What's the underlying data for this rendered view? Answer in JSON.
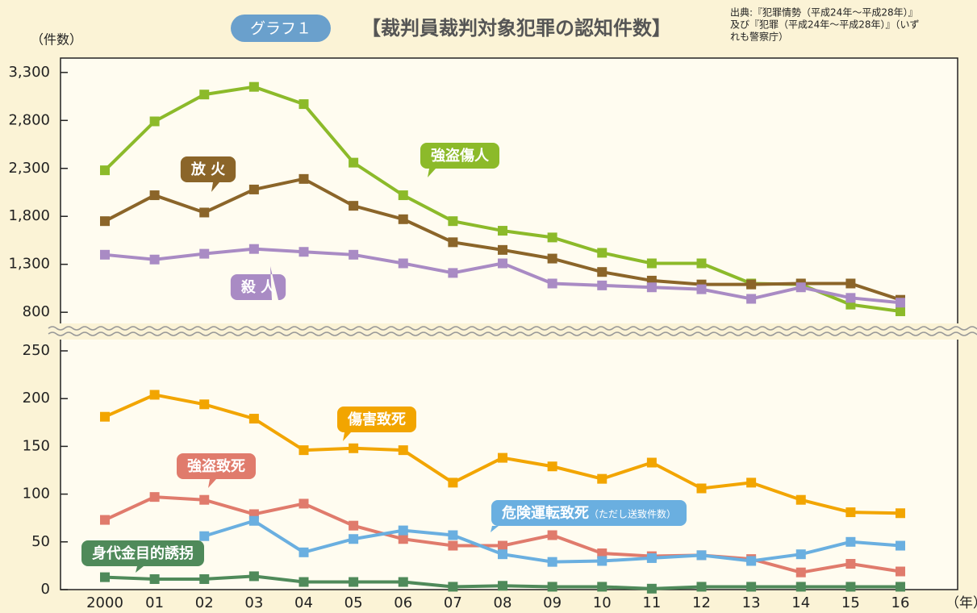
{
  "chart_data": {
    "type": "line",
    "badge": "グラフ１",
    "title": "【裁判員裁判対象犯罪の認知件数】",
    "source": [
      "出典:『犯罪情勢（平成24年～平成28年）』",
      "及び『犯罪（平成24年～平成28年）』（いず",
      "れも警察庁）"
    ],
    "ylabel": "（件数）",
    "xlabel": "（年）",
    "categories": [
      "2000",
      "01",
      "02",
      "03",
      "04",
      "05",
      "06",
      "07",
      "08",
      "09",
      "10",
      "11",
      "12",
      "13",
      "14",
      "15",
      "16"
    ],
    "panels": [
      {
        "ylim": [
          650,
          3450
        ],
        "yticks": [
          {
            "value": 800,
            "label": "800"
          },
          {
            "value": 1300,
            "label": "1,300"
          },
          {
            "value": 1800,
            "label": "1,800"
          },
          {
            "value": 2300,
            "label": "2,300"
          },
          {
            "value": 2800,
            "label": "2,800"
          },
          {
            "value": 3300,
            "label": "3,300"
          }
        ],
        "series": [
          {
            "name": "強盗傷人",
            "color": "#8cba2a",
            "values": [
              2280,
              2790,
              3070,
              3150,
              2970,
              2360,
              2020,
              1750,
              1650,
              1580,
              1420,
              1310,
              1310,
              1100,
              1090,
              880,
              810
            ]
          },
          {
            "name": "放 火",
            "color": "#8b6529",
            "values": [
              1750,
              2020,
              1840,
              2080,
              2190,
              1910,
              1770,
              1530,
              1450,
              1360,
              1220,
              1130,
              1090,
              1090,
              1100,
              1100,
              930
            ]
          },
          {
            "name": "殺 人",
            "color": "#a98bc4",
            "values": [
              1400,
              1350,
              1410,
              1460,
              1430,
              1400,
              1310,
              1210,
              1310,
              1100,
              1080,
              1060,
              1040,
              940,
              1060,
              950,
              900
            ]
          }
        ]
      },
      {
        "ylim": [
          0,
          250
        ],
        "yticks": [
          0,
          50,
          100,
          150,
          200,
          250
        ],
        "series": [
          {
            "name": "傷害致死",
            "color": "#f2a500",
            "values": [
              181,
              204,
              194,
              179,
              146,
              148,
              146,
              112,
              138,
              129,
              116,
              133,
              106,
              112,
              94,
              81,
              80
            ]
          },
          {
            "name": "強盗致死",
            "color": "#e07b6c",
            "values": [
              73,
              97,
              94,
              79,
              90,
              67,
              53,
              46,
              46,
              57,
              38,
              35,
              36,
              32,
              18,
              27,
              19
            ]
          },
          {
            "name": "危険運転致死",
            "note": "（ただし送致件数）",
            "color": "#6aafe0",
            "values": [
              null,
              null,
              56,
              72,
              39,
              53,
              62,
              57,
              37,
              29,
              30,
              33,
              36,
              30,
              37,
              50,
              46
            ]
          },
          {
            "name": "身代金目的誘拐",
            "color": "#4f8a5a",
            "values": [
              13,
              11,
              11,
              14,
              8,
              8,
              8,
              3,
              4,
              3,
              3,
              1,
              3,
              3,
              3,
              3,
              3
            ]
          }
        ]
      }
    ]
  }
}
